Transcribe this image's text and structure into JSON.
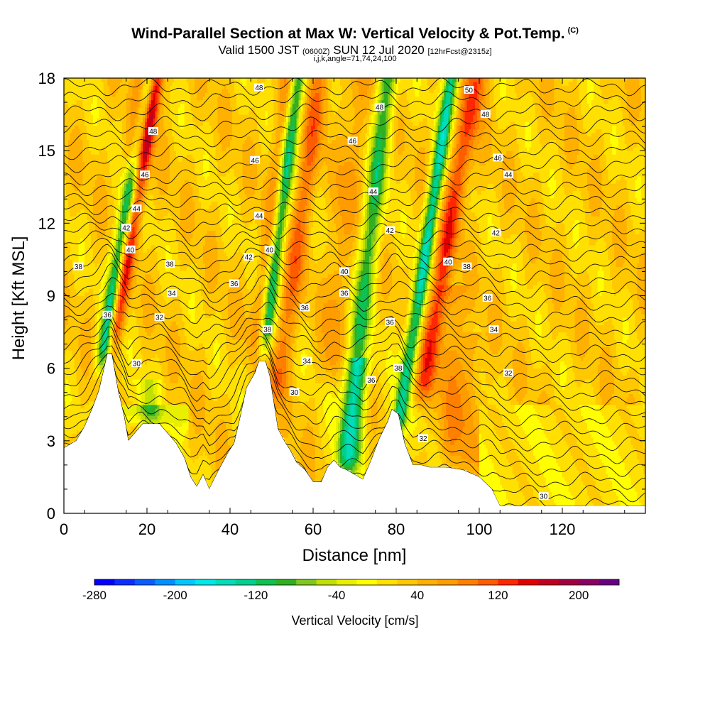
{
  "title": {
    "main": "Wind-Parallel Section at Max W: Vertical Velocity & Pot.Temp.",
    "copyright": "(C)",
    "valid_prefix": "Valid 1500 JST",
    "valid_z": "(0600Z)",
    "valid_date": "SUN 12 Jul 2020",
    "forecast": "[12hrFcst@2315z]",
    "indices": "i,j,k,angle=71,74,24,100"
  },
  "chart_data": {
    "type": "heatmap",
    "xlabel": "Distance [nm]",
    "ylabel": "Height [Kft MSL]",
    "xlim": [
      0,
      140
    ],
    "ylim": [
      0,
      18
    ],
    "x_ticks": [
      0,
      20,
      40,
      60,
      80,
      100,
      120
    ],
    "y_ticks": [
      0,
      3,
      6,
      9,
      12,
      15,
      18
    ],
    "terrain_profile": {
      "x": [
        0,
        3,
        5,
        7,
        8.5,
        10.5,
        11.5,
        13,
        14.5,
        15.5,
        17,
        19,
        23,
        25,
        27,
        29,
        30.5,
        32,
        33.5,
        35,
        37,
        39.5,
        41,
        42.5,
        44,
        46,
        47,
        48.5,
        49.5,
        50.5,
        51.5,
        53,
        54.5,
        56,
        58,
        60,
        62,
        63.5,
        65,
        66.5,
        68,
        70,
        72,
        74,
        76,
        78,
        79,
        80.5,
        82,
        84,
        86,
        88,
        92,
        96,
        100,
        103,
        105,
        110,
        120,
        130,
        140
      ],
      "height_kft": [
        2.7,
        3.0,
        3.6,
        4.4,
        5.1,
        6.6,
        6.6,
        5.1,
        4.0,
        3.0,
        3.3,
        3.7,
        3.7,
        3.3,
        2.9,
        2.3,
        1.5,
        1.1,
        1.6,
        1.0,
        1.7,
        2.5,
        2.9,
        4.0,
        5.2,
        5.8,
        6.3,
        6.3,
        5.7,
        4.6,
        3.5,
        3.0,
        2.6,
        2.1,
        1.8,
        1.3,
        1.3,
        1.9,
        2.2,
        1.9,
        1.8,
        1.6,
        1.4,
        2.2,
        3.1,
        3.8,
        4.3,
        4.1,
        2.9,
        2.0,
        2.0,
        1.9,
        1.9,
        1.8,
        1.5,
        1.0,
        0.3,
        0.3,
        0.3,
        0.3,
        0.3
      ]
    },
    "updrafts": [
      {
        "x": 11.5,
        "zbot": 6.8,
        "ztop": 18,
        "lean": 0.16,
        "w": 150
      },
      {
        "x": 16.5,
        "zbot": 14,
        "ztop": 18,
        "lean": 0.15,
        "w": 110
      },
      {
        "x": 46.5,
        "zbot": 6.5,
        "ztop": 18,
        "lean": 0.12,
        "w": 60
      },
      {
        "x": 50.5,
        "zbot": 4.5,
        "ztop": 18,
        "lean": 0.14,
        "w": 70
      },
      {
        "x": 64.0,
        "zbot": 5.5,
        "ztop": 18,
        "lean": 0.1,
        "w": 45
      },
      {
        "x": 85.5,
        "zbot": 4.5,
        "ztop": 18,
        "lean": 0.17,
        "w": 100
      },
      {
        "x": 92.0,
        "zbot": 2.0,
        "ztop": 9.0,
        "lean": 0.05,
        "w": 50
      },
      {
        "x": 97.0,
        "zbot": 1.5,
        "ztop": 7.0,
        "lean": 0.04,
        "w": 40
      }
    ],
    "downdrafts": [
      {
        "x": 9.0,
        "zbot": 6.0,
        "ztop": 18,
        "lean": 0.16,
        "w": -180
      },
      {
        "x": 48.0,
        "zbot": 6.5,
        "ztop": 18,
        "lean": 0.12,
        "w": -170
      },
      {
        "x": 67.0,
        "zbot": 1.5,
        "ztop": 18,
        "lean": 0.11,
        "w": -120
      },
      {
        "x": 80.0,
        "zbot": 3.0,
        "ztop": 18,
        "lean": 0.15,
        "w": -160
      },
      {
        "x": 20.0,
        "zbot": 3.6,
        "ztop": 5.0,
        "lean": 0.0,
        "w": -60
      },
      {
        "x": 70.0,
        "zbot": 1.5,
        "ztop": 6.0,
        "lean": 0.04,
        "w": -70
      }
    ],
    "theta_label_values": [
      30,
      32,
      34,
      36,
      38,
      40,
      42,
      44,
      46,
      48,
      50
    ],
    "colorbar": {
      "title": "Vertical Velocity [cm/s]",
      "min": -280,
      "max": 240,
      "step": 20,
      "tick_labels": [
        "-280",
        "-200",
        "-120",
        "-40",
        "40",
        "120",
        "200"
      ],
      "colors": [
        "#0000ff",
        "#0a2eff",
        "#0a5cff",
        "#0090ff",
        "#00c8ff",
        "#00e8e8",
        "#00ddb8",
        "#00d090",
        "#10c050",
        "#30b020",
        "#80c820",
        "#c0e000",
        "#e8f000",
        "#ffff00",
        "#ffe000",
        "#ffc800",
        "#ffb000",
        "#ff9c00",
        "#ff8000",
        "#ff5c00",
        "#ff2800",
        "#e00000",
        "#c00020",
        "#a00040",
        "#880060",
        "#680080"
      ]
    }
  },
  "contour_labels": [
    {
      "text": "48",
      "x": 47.0,
      "y": 17.6
    },
    {
      "text": "50",
      "x": 97.5,
      "y": 17.5
    },
    {
      "text": "48",
      "x": 76.0,
      "y": 16.8
    },
    {
      "text": "48",
      "x": 21.5,
      "y": 15.8
    },
    {
      "text": "46",
      "x": 69.5,
      "y": 15.4
    },
    {
      "text": "48",
      "x": 101.5,
      "y": 16.5
    },
    {
      "text": "46",
      "x": 46.0,
      "y": 14.6
    },
    {
      "text": "46",
      "x": 104.5,
      "y": 14.7
    },
    {
      "text": "46",
      "x": 19.5,
      "y": 14.0
    },
    {
      "text": "44",
      "x": 107.0,
      "y": 14.0
    },
    {
      "text": "44",
      "x": 74.5,
      "y": 13.3
    },
    {
      "text": "44",
      "x": 17.5,
      "y": 12.6
    },
    {
      "text": "44",
      "x": 47.0,
      "y": 12.3
    },
    {
      "text": "42",
      "x": 15.0,
      "y": 11.8
    },
    {
      "text": "42",
      "x": 78.5,
      "y": 11.7
    },
    {
      "text": "42",
      "x": 104.0,
      "y": 11.6
    },
    {
      "text": "40",
      "x": 16.0,
      "y": 10.9
    },
    {
      "text": "40",
      "x": 49.5,
      "y": 10.9
    },
    {
      "text": "42",
      "x": 44.5,
      "y": 10.6
    },
    {
      "text": "40",
      "x": 92.5,
      "y": 10.4
    },
    {
      "text": "38",
      "x": 3.5,
      "y": 10.2
    },
    {
      "text": "38",
      "x": 25.5,
      "y": 10.3
    },
    {
      "text": "38",
      "x": 97.0,
      "y": 10.2
    },
    {
      "text": "40",
      "x": 67.5,
      "y": 10.0
    },
    {
      "text": "36",
      "x": 41.0,
      "y": 9.5
    },
    {
      "text": "34",
      "x": 26.0,
      "y": 9.1
    },
    {
      "text": "36",
      "x": 67.5,
      "y": 9.1
    },
    {
      "text": "36",
      "x": 102.0,
      "y": 8.9
    },
    {
      "text": "36",
      "x": 58.0,
      "y": 8.5
    },
    {
      "text": "36",
      "x": 10.5,
      "y": 8.2
    },
    {
      "text": "32",
      "x": 23.0,
      "y": 8.1
    },
    {
      "text": "36",
      "x": 78.5,
      "y": 7.9
    },
    {
      "text": "38",
      "x": 49.0,
      "y": 7.6
    },
    {
      "text": "34",
      "x": 103.5,
      "y": 7.6
    },
    {
      "text": "30",
      "x": 17.5,
      "y": 6.2
    },
    {
      "text": "34",
      "x": 58.5,
      "y": 6.3
    },
    {
      "text": "38",
      "x": 80.5,
      "y": 6.0
    },
    {
      "text": "32",
      "x": 107.0,
      "y": 5.8
    },
    {
      "text": "36",
      "x": 74.0,
      "y": 5.5
    },
    {
      "text": "30",
      "x": 55.5,
      "y": 5.0
    },
    {
      "text": "32",
      "x": 86.5,
      "y": 3.1
    },
    {
      "text": "30",
      "x": 115.5,
      "y": 0.7
    }
  ]
}
